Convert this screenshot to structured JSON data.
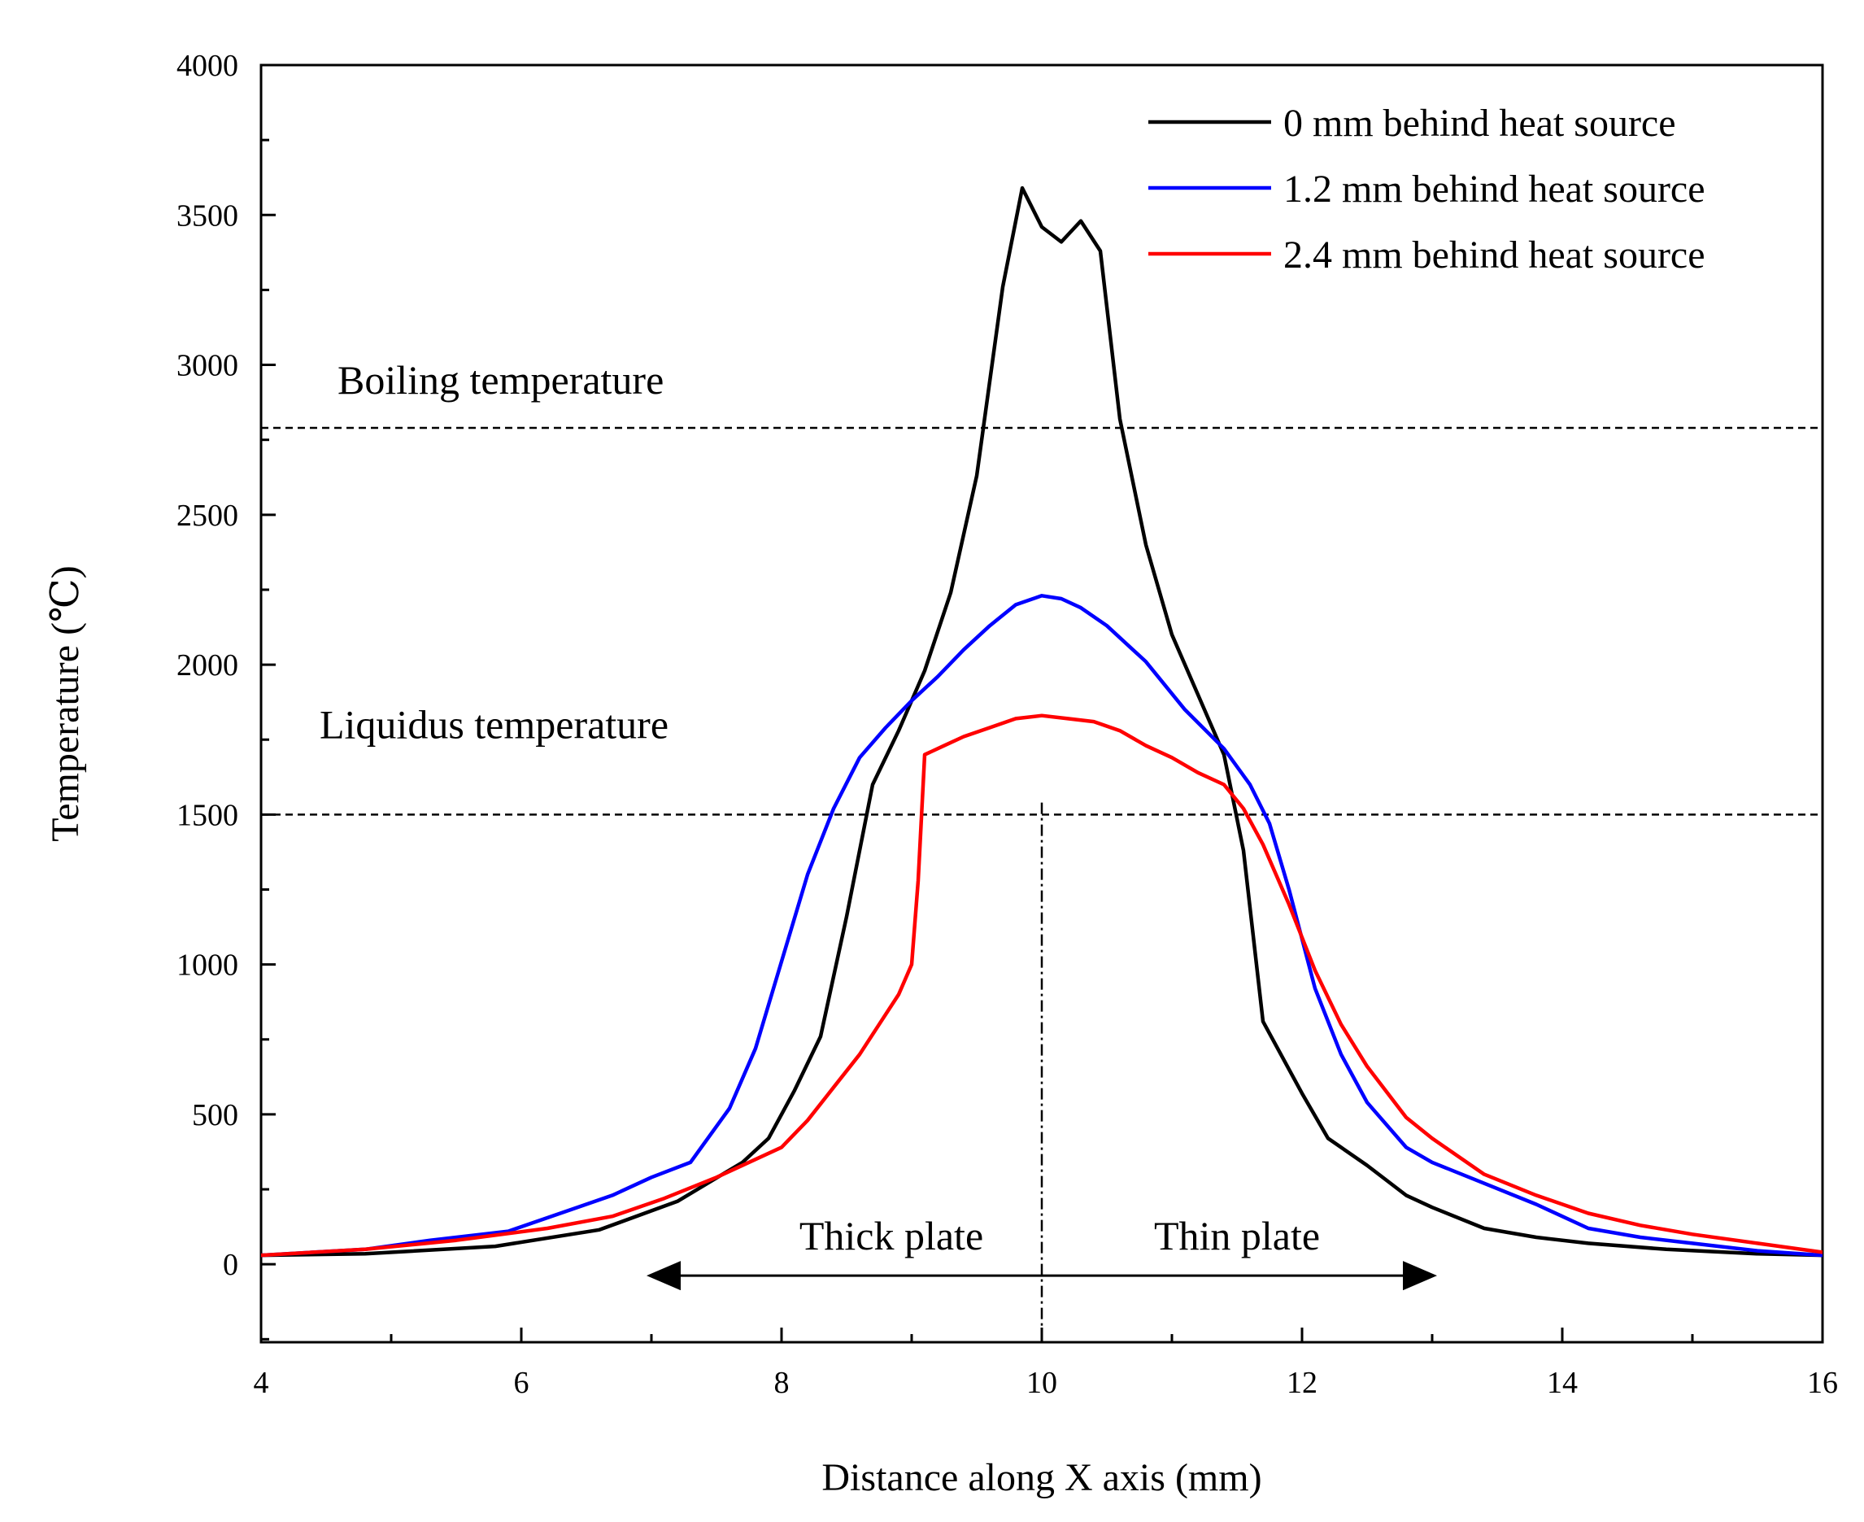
{
  "chart_data": {
    "type": "line",
    "title": "",
    "xlabel": "Distance along X axis (mm)",
    "ylabel": "Temperature (℃)",
    "xlim": [
      4,
      16
    ],
    "ylim": [
      -260,
      4000
    ],
    "xticks": [
      4,
      6,
      8,
      10,
      12,
      14,
      16
    ],
    "yticks": [
      0,
      500,
      1000,
      1500,
      2000,
      2500,
      3000,
      3500,
      4000
    ],
    "grid": false,
    "legend_position": "top-right",
    "series": [
      {
        "name": "0 mm behind heat source",
        "color": "#000000",
        "x": [
          4.0,
          4.8,
          5.8,
          6.6,
          7.2,
          7.7,
          7.9,
          8.1,
          8.3,
          8.5,
          8.7,
          8.9,
          9.1,
          9.3,
          9.5,
          9.7,
          9.85,
          10.0,
          10.15,
          10.3,
          10.45,
          10.6,
          10.8,
          11.0,
          11.2,
          11.4,
          11.55,
          11.7,
          12.0,
          12.2,
          12.5,
          12.8,
          13.0,
          13.4,
          13.8,
          14.2,
          14.8,
          15.5,
          16.0
        ],
        "y": [
          30,
          35,
          60,
          115,
          210,
          340,
          420,
          580,
          760,
          1160,
          1600,
          1780,
          1980,
          2240,
          2630,
          3260,
          3590,
          3460,
          3410,
          3480,
          3380,
          2820,
          2400,
          2100,
          1900,
          1700,
          1380,
          810,
          570,
          420,
          330,
          230,
          190,
          120,
          90,
          70,
          50,
          35,
          30
        ]
      },
      {
        "name": "1.2 mm behind heat source",
        "color": "#0000ff",
        "x": [
          4.0,
          4.8,
          5.3,
          5.9,
          6.3,
          6.7,
          7.0,
          7.3,
          7.6,
          7.8,
          8.0,
          8.2,
          8.4,
          8.6,
          8.8,
          9.0,
          9.2,
          9.4,
          9.6,
          9.8,
          10.0,
          10.15,
          10.3,
          10.5,
          10.8,
          11.1,
          11.4,
          11.6,
          11.75,
          11.9,
          12.1,
          12.3,
          12.5,
          12.8,
          13.0,
          13.4,
          13.8,
          14.2,
          14.6,
          15.0,
          15.5,
          16.0
        ],
        "y": [
          30,
          50,
          80,
          110,
          170,
          230,
          290,
          340,
          520,
          720,
          1010,
          1300,
          1520,
          1690,
          1790,
          1880,
          1960,
          2050,
          2130,
          2200,
          2230,
          2220,
          2190,
          2130,
          2010,
          1850,
          1720,
          1600,
          1470,
          1250,
          920,
          700,
          540,
          390,
          340,
          270,
          200,
          120,
          90,
          70,
          45,
          30
        ]
      },
      {
        "name": "2.4 mm behind heat source",
        "color": "#ff0000",
        "x": [
          4.0,
          4.8,
          5.5,
          6.2,
          6.7,
          7.1,
          7.5,
          7.8,
          8.0,
          8.2,
          8.4,
          8.6,
          8.75,
          8.9,
          9.0,
          9.05,
          9.1,
          9.25,
          9.4,
          9.6,
          9.8,
          10.0,
          10.2,
          10.4,
          10.6,
          10.8,
          11.0,
          11.2,
          11.4,
          11.55,
          11.7,
          11.9,
          12.1,
          12.3,
          12.5,
          12.8,
          13.0,
          13.4,
          13.8,
          14.2,
          14.6,
          15.0,
          15.5,
          16.0
        ],
        "y": [
          30,
          50,
          80,
          120,
          160,
          220,
          290,
          350,
          390,
          480,
          590,
          700,
          800,
          900,
          1000,
          1280,
          1700,
          1730,
          1760,
          1790,
          1820,
          1830,
          1820,
          1810,
          1780,
          1730,
          1690,
          1640,
          1600,
          1520,
          1400,
          1200,
          980,
          800,
          660,
          490,
          420,
          300,
          230,
          170,
          130,
          100,
          70,
          40
        ]
      }
    ],
    "reference_lines": [
      {
        "label": "Boiling temperature",
        "y": 2790,
        "style": "dashed"
      },
      {
        "label": "Liquidus temperature",
        "y": 1500,
        "style": "dashed"
      }
    ],
    "vertical_line": {
      "x": 10,
      "y_from": -260,
      "y_to": 1540,
      "style": "dash-dot"
    },
    "arrows": [
      {
        "label": "Thick plate",
        "from_x": 10,
        "to_x": 7,
        "y": 0
      },
      {
        "label": "Thin plate",
        "from_x": 10,
        "to_x": 13,
        "y": 0
      }
    ]
  }
}
